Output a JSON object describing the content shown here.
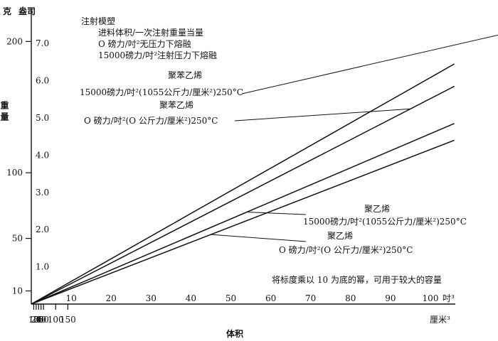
{
  "chart_data": {
    "type": "line",
    "title": "注射模塑",
    "subtitle_lines": [
      "进料体积/一次注射重量当量",
      "O 磅力/吋²无压力下熔融",
      "15000磅力/吋²注射压力下熔融"
    ],
    "note": "将标度乘以 10 为底的幂，可用于较大的容量",
    "xlabel": "体积",
    "ylabel": "重量",
    "y_unit_left": "克",
    "y_unit_right": "盎司",
    "x_unit_top": "吋³",
    "x_unit_bottom": "厘米³",
    "x_bottom_ticks": [
      "10",
      "20",
      "30",
      "40",
      "50",
      "100",
      "150"
    ],
    "x_top_ticks": [
      "10",
      "20",
      "30",
      "40",
      "50",
      "60",
      "70",
      "80",
      "90",
      "100"
    ],
    "y_left_ticks": [
      "10",
      "50",
      "100",
      "200"
    ],
    "y_right_ticks": [
      "1.0",
      "2.0",
      "3.0",
      "4.0",
      "5.0",
      "6.0",
      "7.0"
    ],
    "xlim_in3": [
      0,
      106
    ],
    "ylim_oz": [
      0,
      7.7
    ],
    "series": [
      {
        "name": "聚苯乙烯 15000磅力/吋²(1055公斤力/厘米²)250°C",
        "material": "聚苯乙烯",
        "condition": "15000磅力/吋²(1055公斤力/厘米²)250°C",
        "x": [
          0,
          106
        ],
        "y": [
          0,
          6.45
        ]
      },
      {
        "name": "聚苯乙烯 O磅力/吋²(O公斤力/厘米²)250°C",
        "material": "聚苯乙烯",
        "condition": "O 磅力/吋²(O 公斤力/厘米²)250°C",
        "x": [
          0,
          106
        ],
        "y": [
          0,
          5.85
        ]
      },
      {
        "name": "聚乙烯 15000磅力/吋²(1055公斤力/厘米²)250°C",
        "material": "聚乙烯",
        "condition": "15000磅力/吋²(1055公斤力/厘米²)250°C",
        "x": [
          0,
          106
        ],
        "y": [
          0,
          4.85
        ]
      },
      {
        "name": "聚乙烯 O磅力/吋²(O公斤力/厘米²)250°C",
        "material": "聚乙烯",
        "condition": "O 磅力/吋²(O 公斤力/厘米²)250°C",
        "x": [
          0,
          106
        ],
        "y": [
          0,
          4.4
        ]
      }
    ],
    "annotations": [
      {
        "material": "聚苯乙烯",
        "condition": "15000磅力/吋²(1055公斤力/厘米²)250°C",
        "series_index": 0
      },
      {
        "material": "聚苯乙烯",
        "condition": "O 磅力/吋²(O 公斤力/厘米²)250°C",
        "series_index": 1
      },
      {
        "material": "聚乙烯",
        "condition": "15000磅力/吋²(1055公斤力/厘米²)250°C",
        "series_index": 2
      },
      {
        "material": "聚乙烯",
        "condition": "O 磅力/吋²(O 公斤力/厘米²)250°C",
        "series_index": 3
      }
    ],
    "grid": false,
    "legend": "none"
  }
}
